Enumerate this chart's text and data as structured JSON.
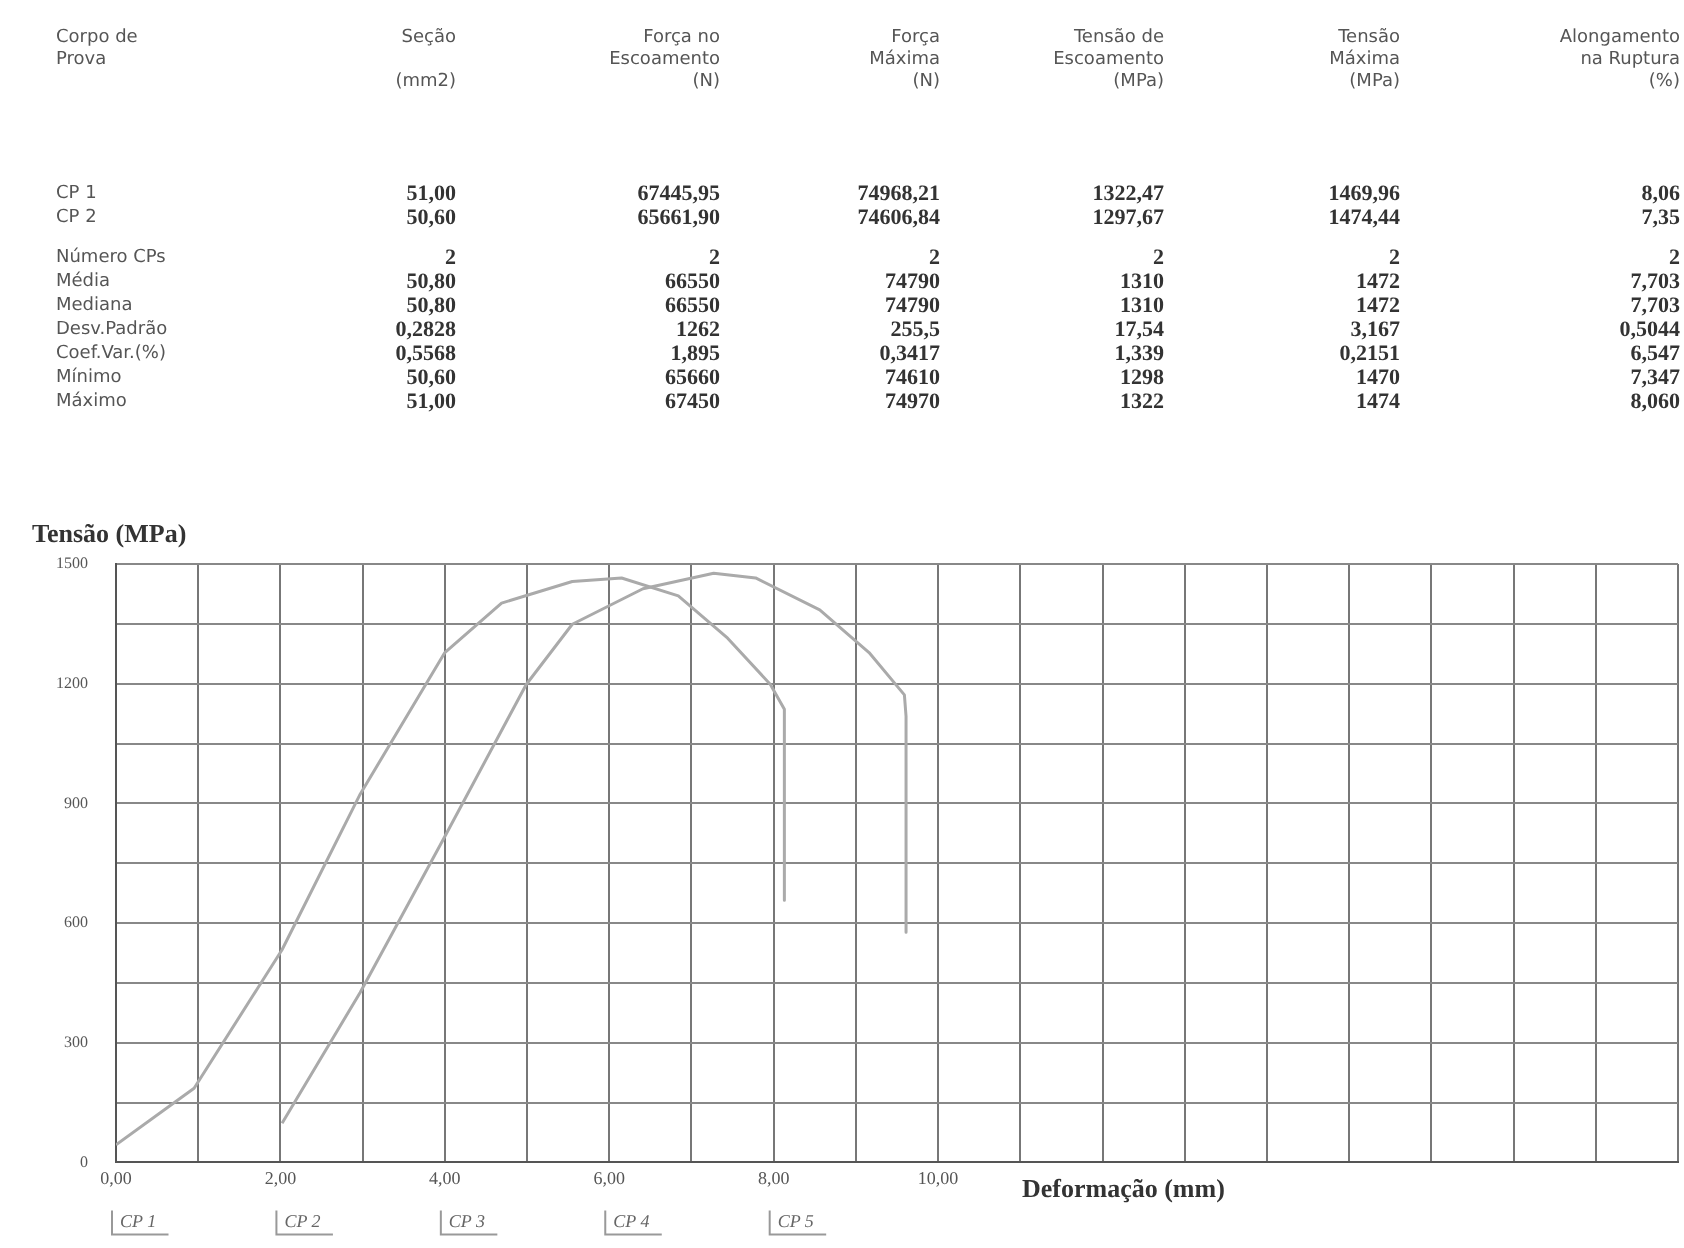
{
  "chart_data": {
    "type": "line",
    "ylabel": "Tensão (MPa)",
    "xlabel": "Deformação (mm)",
    "annotations": [
      "Corpo de\nProva",
      "Seção\n\n(mm2)",
      "Força no\nEscoamento\n(N)",
      "Força\nMáxima\n(N)",
      "Tensão de\nEscoamento\n(MPa)",
      "Tensão\nMáxima\n(MPa)",
      "Alongamento\nna Ruptura\n(%)",
      "CP 1",
      "51,00",
      "67445,95",
      "74968,21",
      "1322,47",
      "1469,96",
      "8,06",
      "CP 2",
      "50,60",
      "65661,90",
      "74606,84",
      "1297,67",
      "1474,44",
      "7,35",
      "Número CPs",
      "2",
      "2",
      "2",
      "2",
      "2",
      "2",
      "Média",
      "50,80",
      "66550",
      "74790",
      "1310",
      "1472",
      "7,703",
      "Mediana",
      "50,80",
      "66550",
      "74790",
      "1310",
      "1472",
      "7,703",
      "Desv.Padrão",
      "0,2828",
      "1262",
      "255,5",
      "17,54",
      "3,167",
      "0,5044",
      "Coef.Var.(%)",
      "0,5568",
      "1,895",
      "0,3417",
      "1,339",
      "0,2151",
      "6,547",
      "Mínimo",
      "50,60",
      "65660",
      "74610",
      "1298",
      "1470",
      "7,347",
      "Máximo",
      "51,00",
      "67450",
      "74970",
      "1322",
      "1474",
      "8,060",
      "CP 1",
      "CP 2",
      "CP 3",
      "CP 4",
      "CP 5"
    ],
    "series": [
      {
        "color": "#aaaaaa",
        "x": [
          0,
          0.95,
          2.02,
          2.97,
          4.0,
          4.69,
          5.55,
          6.15,
          6.84,
          7.44,
          7.96,
          8.13,
          8.13
        ],
        "values": [
          44,
          186,
          533,
          923,
          1278,
          1402,
          1456,
          1465,
          1420,
          1314,
          1198,
          1136,
          657
        ]
      },
      {
        "color": "#aaaaaa",
        "x": [
          2.02,
          2.97,
          4.0,
          4.99,
          5.55,
          6.41,
          7.27,
          7.78,
          8.56,
          9.16,
          9.59,
          9.61,
          9.61
        ],
        "values": [
          98,
          426,
          817,
          1198,
          1349,
          1438,
          1477,
          1465,
          1385,
          1278,
          1172,
          1118,
          577
        ]
      }
    ],
    "xlim": [
      0,
      19
    ],
    "xticks": [
      {
        "value": 0,
        "label": "0,00"
      },
      {
        "value": 1,
        "label": null
      },
      {
        "value": 2,
        "label": "2,00"
      },
      {
        "value": 3,
        "label": null
      },
      {
        "value": 4,
        "label": "4,00"
      },
      {
        "value": 5,
        "label": null
      },
      {
        "value": 6,
        "label": "6,00"
      },
      {
        "value": 7,
        "label": null
      },
      {
        "value": 8,
        "label": "8,00"
      },
      {
        "value": 9,
        "label": null
      },
      {
        "value": 10,
        "label": "10,00"
      },
      {
        "value": 11,
        "label": null
      },
      {
        "value": 12,
        "label": null
      },
      {
        "value": 13,
        "label": null
      },
      {
        "value": 14,
        "label": null
      },
      {
        "value": 15,
        "label": null
      },
      {
        "value": 16,
        "label": null
      },
      {
        "value": 17,
        "label": null
      },
      {
        "value": 18,
        "label": null
      },
      {
        "value": 19,
        "label": null
      }
    ],
    "ylim": [
      0,
      1500
    ],
    "yticks": [
      0,
      {
        "value": 150,
        "label": null
      },
      300,
      {
        "value": 450,
        "label": null
      },
      600,
      {
        "value": 750,
        "label": null
      },
      900,
      {
        "value": 1050,
        "label": null
      },
      1200,
      {
        "value": 1350,
        "label": null
      },
      1500
    ],
    "grid": true,
    "legend": false,
    "marker": "none",
    "line_style": "solid"
  }
}
